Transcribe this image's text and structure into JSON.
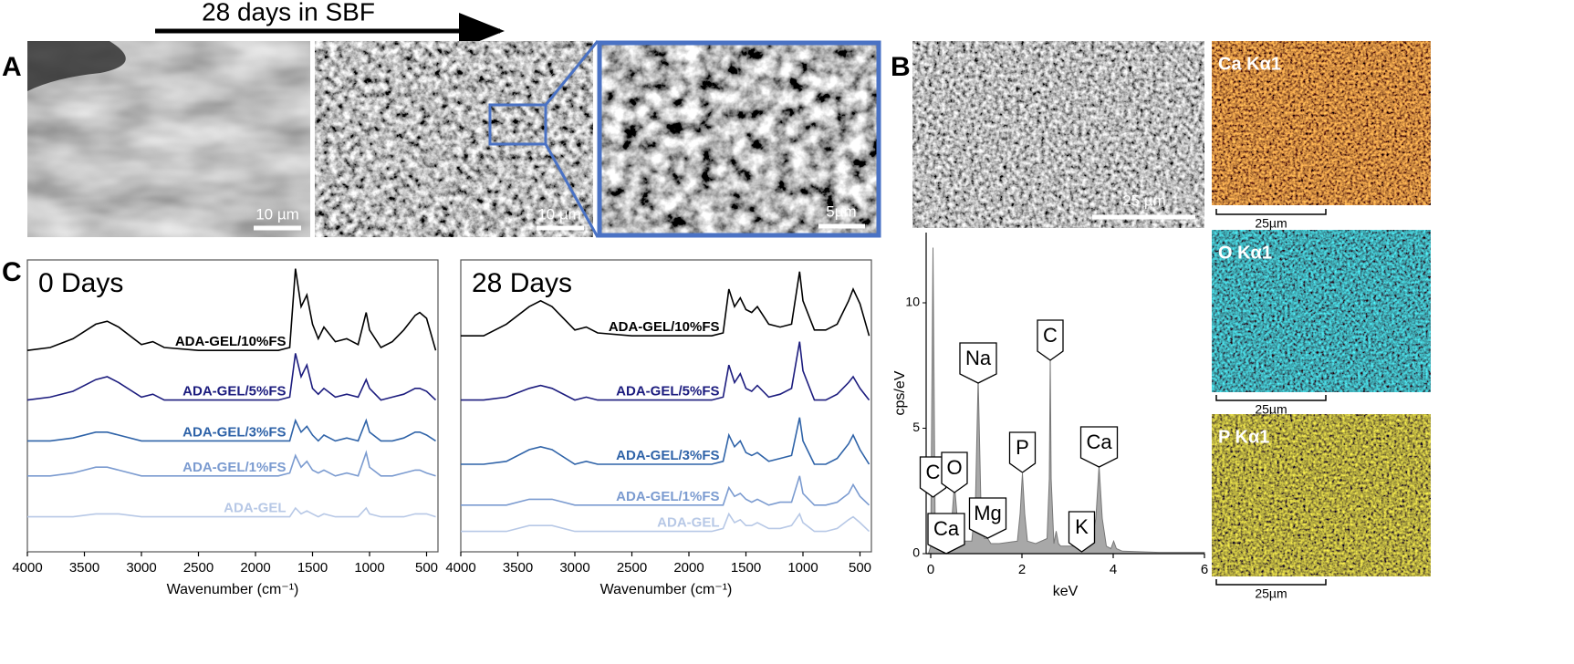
{
  "panel_labels": [
    "A",
    "B",
    "C"
  ],
  "panel_a": {
    "arrow_label": "28 days in SBF",
    "scale_bars": [
      "10 µm",
      "10 µm",
      "5µm"
    ]
  },
  "panel_b": {
    "scale_bar": "25 µm",
    "maps": [
      {
        "label": "Ca Kα1",
        "scale_bar": "25µm"
      },
      {
        "label": "O Kα1",
        "scale_bar": "25µm"
      },
      {
        "label": "P Kα1",
        "scale_bar": "25µm"
      }
    ]
  },
  "chart_data": [
    {
      "type": "line",
      "title": "0 Days",
      "x_label": "Wavenumber (cm⁻¹)",
      "x": [
        4000,
        3800,
        3600,
        3400,
        3300,
        3200,
        3000,
        2900,
        2800,
        2500,
        2000,
        1800,
        1700,
        1650,
        1600,
        1550,
        1500,
        1450,
        1400,
        1300,
        1200,
        1100,
        1030,
        1000,
        900,
        800,
        700,
        600,
        560,
        500,
        420
      ],
      "xlim": [
        4000,
        400
      ],
      "xticks": [
        4000,
        3500,
        3000,
        2500,
        2000,
        1500,
        1000,
        500
      ],
      "ylim": [
        0,
        100
      ],
      "series": [
        {
          "name": "ADA-GEL/10%FS",
          "color": "#000000",
          "values": [
            69,
            70,
            73,
            78,
            79,
            77,
            71,
            72,
            70,
            69,
            69,
            69,
            70,
            97,
            84,
            88,
            78,
            73,
            77,
            72,
            73,
            71,
            82,
            76,
            70,
            72,
            76,
            81,
            82,
            80,
            69
          ]
        },
        {
          "name": "ADA-GEL/5%FS",
          "color": "#1c1c7e",
          "values": [
            52,
            53,
            55,
            59,
            60,
            58,
            53,
            54,
            52,
            52,
            52,
            52,
            53,
            68,
            60,
            64,
            56,
            54,
            56,
            53,
            54,
            53,
            59,
            56,
            52,
            53,
            54,
            56,
            56,
            55,
            52
          ]
        },
        {
          "name": "ADA-GEL/3%FS",
          "color": "#2f63a8",
          "values": [
            38,
            38,
            39,
            41,
            41,
            40,
            38,
            38,
            38,
            38,
            38,
            38,
            38,
            45,
            41,
            43,
            40,
            38,
            40,
            38,
            39,
            38,
            45,
            41,
            38,
            38,
            39,
            41,
            41,
            40,
            38
          ]
        },
        {
          "name": "ADA-GEL/1%FS",
          "color": "#7b9bd0",
          "values": [
            26,
            26,
            27,
            29,
            29,
            28,
            26,
            26,
            26,
            26,
            26,
            26,
            27,
            33,
            29,
            31,
            28,
            27,
            28,
            26,
            27,
            26,
            34,
            29,
            26,
            26,
            27,
            28,
            28,
            27,
            26
          ]
        },
        {
          "name": "ADA-GEL",
          "color": "#b7c8e6",
          "values": [
            12,
            12,
            12,
            13,
            13,
            13,
            12,
            12,
            12,
            12,
            12,
            12,
            12,
            15,
            13,
            14,
            13,
            12,
            13,
            12,
            12,
            12,
            15,
            13,
            12,
            12,
            12,
            13,
            13,
            13,
            12
          ]
        }
      ]
    },
    {
      "type": "line",
      "title": "28 Days",
      "x_label": "Wavenumber (cm⁻¹)",
      "x": [
        4000,
        3800,
        3600,
        3400,
        3300,
        3200,
        3000,
        2900,
        2800,
        2500,
        2000,
        1800,
        1700,
        1650,
        1600,
        1550,
        1500,
        1450,
        1400,
        1300,
        1200,
        1100,
        1030,
        1000,
        900,
        800,
        700,
        600,
        560,
        500,
        420
      ],
      "xlim": [
        4000,
        400
      ],
      "xticks": [
        4000,
        3500,
        3000,
        2500,
        2000,
        1500,
        1000,
        500
      ],
      "ylim": [
        0,
        100
      ],
      "series": [
        {
          "name": "ADA-GEL/10%FS",
          "color": "#000000",
          "values": [
            74,
            74,
            78,
            84,
            86,
            84,
            76,
            77,
            75,
            74,
            74,
            74,
            75,
            90,
            84,
            87,
            83,
            82,
            84,
            78,
            77,
            78,
            96,
            86,
            76,
            76,
            78,
            86,
            90,
            85,
            74
          ]
        },
        {
          "name": "ADA-GEL/5%FS",
          "color": "#1c1c7e",
          "values": [
            52,
            52,
            53,
            56,
            57,
            56,
            52,
            53,
            52,
            52,
            52,
            52,
            53,
            64,
            58,
            61,
            56,
            55,
            57,
            53,
            54,
            56,
            72,
            62,
            52,
            52,
            54,
            58,
            60,
            56,
            52
          ]
        },
        {
          "name": "ADA-GEL/3%FS",
          "color": "#2f63a8",
          "values": [
            30,
            30,
            31,
            35,
            36,
            35,
            30,
            31,
            30,
            30,
            30,
            30,
            31,
            40,
            36,
            38,
            34,
            33,
            34,
            31,
            32,
            33,
            46,
            38,
            30,
            30,
            32,
            37,
            40,
            35,
            30
          ]
        },
        {
          "name": "ADA-GEL/1%FS",
          "color": "#7b9bd0",
          "values": [
            16,
            16,
            16,
            18,
            18,
            18,
            16,
            16,
            16,
            16,
            16,
            16,
            16,
            22,
            19,
            20,
            18,
            17,
            18,
            16,
            17,
            17,
            26,
            20,
            16,
            16,
            17,
            20,
            23,
            19,
            16
          ]
        },
        {
          "name": "ADA-GEL",
          "color": "#b7c8e6",
          "values": [
            7,
            7,
            7,
            9,
            9,
            9,
            7,
            7,
            7,
            7,
            7,
            7,
            8,
            13,
            10,
            11,
            9,
            9,
            10,
            8,
            8,
            9,
            13,
            10,
            7,
            7,
            8,
            11,
            12,
            10,
            7
          ]
        }
      ]
    },
    {
      "type": "area",
      "x_label": "keV",
      "y_label": "cps/eV",
      "color": "#a8a8a8",
      "x": [
        -0.05,
        0,
        0.05,
        0.1,
        0.2,
        0.28,
        0.35,
        0.45,
        0.52,
        0.6,
        0.7,
        0.9,
        0.98,
        1.04,
        1.1,
        1.18,
        1.25,
        1.32,
        1.5,
        1.9,
        1.96,
        2.01,
        2.06,
        2.12,
        2.3,
        2.55,
        2.6,
        2.62,
        2.64,
        2.7,
        2.75,
        2.8,
        2.85,
        3.0,
        3.5,
        3.62,
        3.69,
        3.76,
        3.85,
        3.95,
        4.01,
        4.07,
        4.2,
        5,
        6
      ],
      "values": [
        0,
        0.3,
        12.2,
        0.5,
        0.6,
        1.2,
        0.7,
        1.0,
        2.8,
        1.0,
        0.5,
        0.5,
        2,
        7,
        2,
        0.6,
        0.6,
        0.4,
        0.4,
        0.5,
        1.6,
        3.2,
        1.6,
        0.5,
        0.4,
        0.6,
        3,
        7.8,
        3,
        0.4,
        0.9,
        0.4,
        0.3,
        0.3,
        0.3,
        1.4,
        3.5,
        1.4,
        0.3,
        0.2,
        0.5,
        0.2,
        0.1,
        0.05,
        0.05
      ],
      "xlim": [
        -0.1,
        6
      ],
      "xticks": [
        0,
        2,
        4,
        6
      ],
      "ylim": [
        0,
        12.8
      ],
      "yticks": [
        0,
        5,
        10
      ],
      "annotations": [
        {
          "text": "C",
          "x": 0.05
        },
        {
          "text": "Ca",
          "x": 0.34
        },
        {
          "text": "O",
          "x": 0.52
        },
        {
          "text": "Na",
          "x": 1.04
        },
        {
          "text": "Mg",
          "x": 1.25
        },
        {
          "text": "P",
          "x": 2.01
        },
        {
          "text": "C",
          "x": 2.62
        },
        {
          "text": "K",
          "x": 3.31
        },
        {
          "text": "Ca",
          "x": 3.69
        }
      ]
    }
  ]
}
